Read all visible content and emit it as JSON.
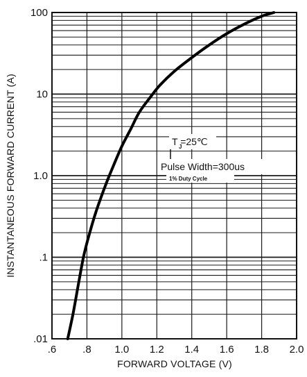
{
  "chart_data": {
    "type": "line",
    "title": "",
    "xlabel": "FORWARD VOLTAGE (V)",
    "ylabel": "INSTANTANEOUS FORWARD CURRENT (A)",
    "xlim": [
      0.6,
      2.0
    ],
    "ylim": [
      0.01,
      100
    ],
    "yscale": "log",
    "grid": true,
    "x_ticks": [
      0.6,
      0.8,
      1.0,
      1.2,
      1.4,
      1.6,
      1.8,
      2.0
    ],
    "x_tick_labels": [
      ".6",
      ".8",
      "1.0",
      "1.2",
      "1.4",
      "1.6",
      "1.8",
      "2.0"
    ],
    "y_ticks": [
      0.01,
      0.1,
      1,
      10,
      100
    ],
    "y_tick_labels": [
      ".01",
      ".1",
      "1.0",
      "10",
      "100"
    ],
    "series": [
      {
        "x": [
          0.69,
          0.72,
          0.75,
          0.78,
          0.81,
          0.85,
          0.9,
          0.95,
          1.0,
          1.05,
          1.1,
          1.16,
          1.22,
          1.3,
          1.4,
          1.5,
          1.6,
          1.7,
          1.8,
          1.87
        ],
        "y": [
          0.01,
          0.02,
          0.045,
          0.1,
          0.18,
          0.35,
          0.7,
          1.3,
          2.3,
          3.7,
          6.0,
          9.0,
          13.0,
          19.0,
          28.0,
          40.0,
          55.0,
          72.0,
          90.0,
          100.0
        ]
      }
    ],
    "annotations": {
      "temperature": "T =25℃",
      "temperature_subscript": "J",
      "pulse_width": "Pulse Width=300us",
      "duty_cycle": "1% Duty Cycle"
    }
  }
}
